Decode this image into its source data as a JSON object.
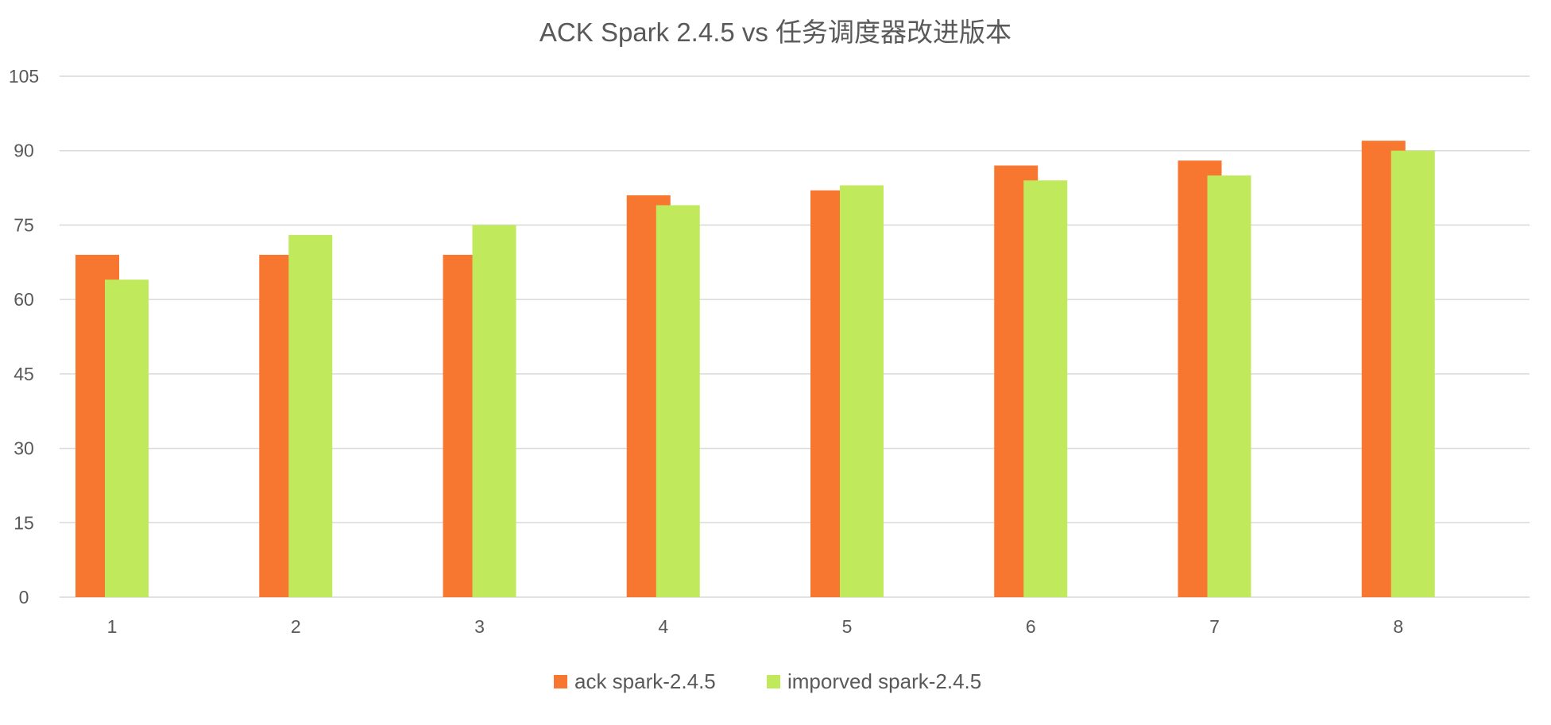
{
  "chart_data": {
    "type": "bar",
    "title": "ACK Spark 2.4.5 vs 任务调度器改进版本",
    "xlabel": "",
    "ylabel": "",
    "categories": [
      "1",
      "2",
      "3",
      "4",
      "5",
      "6",
      "7",
      "8"
    ],
    "series": [
      {
        "name": "ack spark-2.4.5",
        "color": "#F77731",
        "values": [
          69,
          69,
          69,
          81,
          82,
          87,
          88,
          92
        ]
      },
      {
        "name": "imporved spark-2.4.5",
        "color": "#C0E95B",
        "values": [
          64,
          73,
          75,
          79,
          83,
          84,
          85,
          90
        ]
      }
    ],
    "ylim": [
      0,
      105
    ],
    "yticks": [
      "0",
      "15",
      "30",
      "45",
      "60",
      "75",
      "90",
      "105"
    ],
    "grid": true,
    "gridline_color": "#D9D9D9",
    "legend_position": "bottom"
  }
}
